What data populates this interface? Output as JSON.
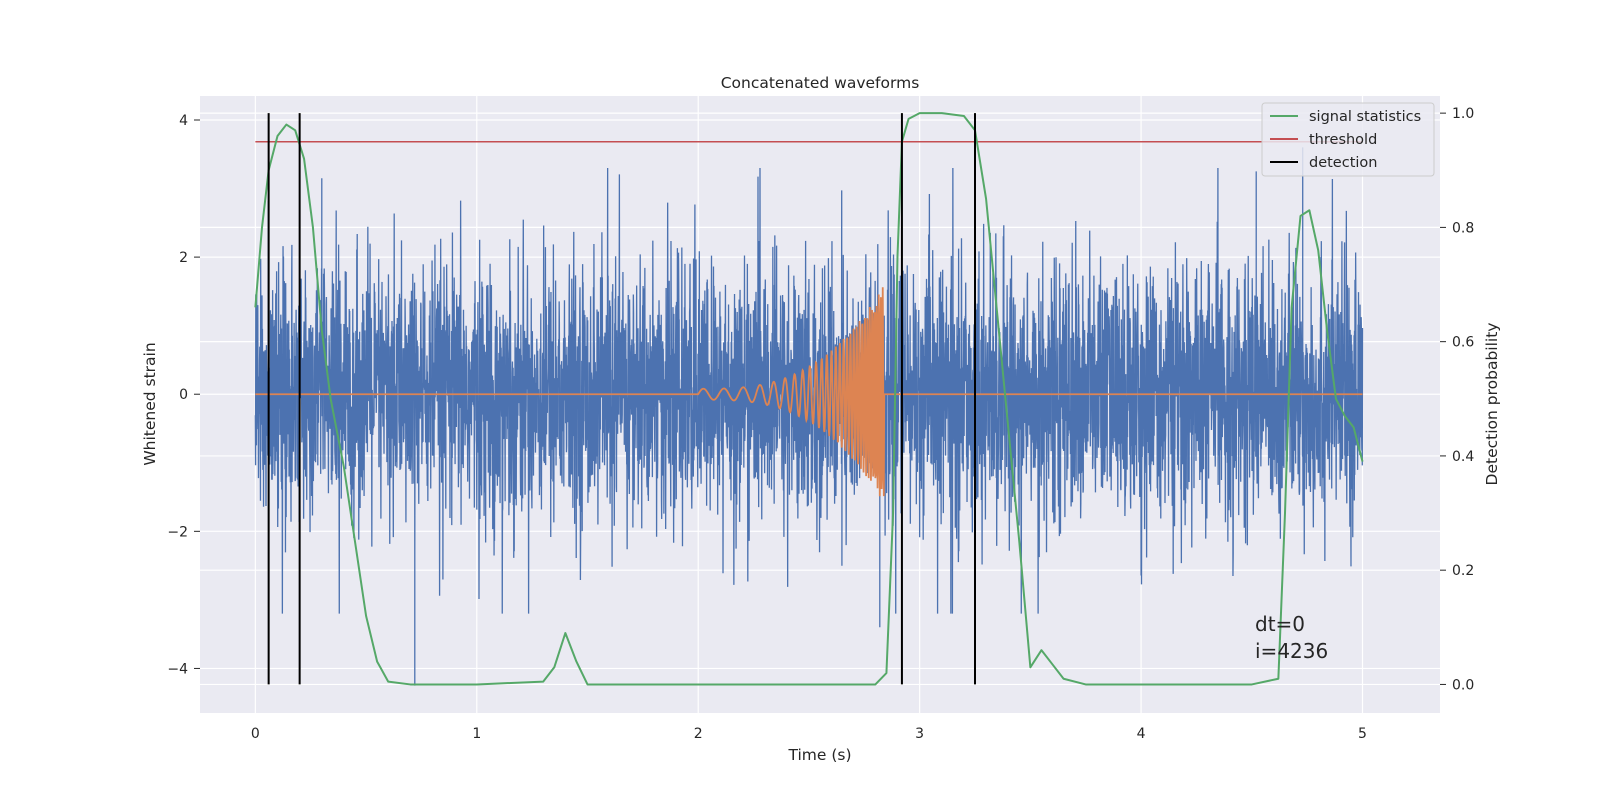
{
  "chart_data": {
    "type": "line",
    "title": "Concatenated waveforms",
    "xlabel": "Time (s)",
    "ylabel": "Whitened strain",
    "y2label": "Detection probability",
    "xlim": [
      -0.25,
      5.35
    ],
    "ylim": [
      -4.65,
      4.35
    ],
    "y2lim": [
      -0.05,
      1.03
    ],
    "x_ticks": [
      0,
      1,
      2,
      3,
      4,
      5
    ],
    "x_tick_labels": [
      "0",
      "1",
      "2",
      "3",
      "4",
      "5"
    ],
    "y_ticks": [
      4,
      2,
      0,
      -2,
      -4
    ],
    "y_tick_labels": [
      "4",
      "2",
      "0",
      "−2",
      "−4"
    ],
    "y2_ticks": [
      1.0,
      0.8,
      0.6,
      0.4,
      0.2,
      0.0
    ],
    "y2_tick_labels": [
      "1.0",
      "0.8",
      "0.6",
      "0.4",
      "0.2",
      "0.0"
    ],
    "grid": true,
    "legend_position": "top-right",
    "legend": [
      {
        "label": "signal statistics",
        "color": "#55a868"
      },
      {
        "label": "threshold",
        "color": "#c44e52"
      },
      {
        "label": "detection",
        "color": "#000000"
      }
    ],
    "series": [
      {
        "name": "whitened strain noise",
        "color": "#4c72b0",
        "axis": "left",
        "x_range": [
          0,
          5
        ],
        "envelope_typical": [
          -1.0,
          1.0
        ],
        "notable_extremes": [
          {
            "x": 0.72,
            "y": -4.25
          },
          {
            "x": 2.82,
            "y": -3.4
          },
          {
            "x": 4.73,
            "y": 3.6
          },
          {
            "x": 0.3,
            "y": 3.15
          },
          {
            "x": 4.52,
            "y": 3.25
          }
        ]
      },
      {
        "name": "injected waveform",
        "color": "#dd8452",
        "axis": "left",
        "x_range": [
          0,
          5
        ],
        "chirp_start": 2.0,
        "chirp_end": 2.84,
        "peak_amplitude": 1.6
      },
      {
        "name": "signal statistics",
        "color": "#55a868",
        "axis": "right",
        "x": [
          0.0,
          0.03,
          0.06,
          0.1,
          0.14,
          0.18,
          0.22,
          0.26,
          0.3,
          0.34,
          0.4,
          0.45,
          0.5,
          0.55,
          0.6,
          0.7,
          1.0,
          1.3,
          1.35,
          1.4,
          1.45,
          1.5,
          2.0,
          2.8,
          2.85,
          2.88,
          2.9,
          2.92,
          2.95,
          3.0,
          3.1,
          3.2,
          3.25,
          3.3,
          3.35,
          3.4,
          3.45,
          3.5,
          3.55,
          3.6,
          3.65,
          3.75,
          4.0,
          4.5,
          4.62,
          4.65,
          4.68,
          4.72,
          4.76,
          4.8,
          4.84,
          4.88,
          4.92,
          4.96,
          5.0
        ],
        "y": [
          0.66,
          0.8,
          0.9,
          0.96,
          0.98,
          0.97,
          0.92,
          0.8,
          0.62,
          0.5,
          0.38,
          0.25,
          0.12,
          0.04,
          0.005,
          0.0,
          0.0,
          0.005,
          0.03,
          0.09,
          0.04,
          0.0,
          0.0,
          0.0,
          0.02,
          0.3,
          0.75,
          0.95,
          0.99,
          1.0,
          1.0,
          0.995,
          0.97,
          0.85,
          0.65,
          0.45,
          0.25,
          0.03,
          0.06,
          0.035,
          0.01,
          0.0,
          0.0,
          0.0,
          0.01,
          0.3,
          0.66,
          0.82,
          0.83,
          0.76,
          0.62,
          0.5,
          0.47,
          0.45,
          0.39
        ]
      },
      {
        "name": "threshold",
        "color": "#c44e52",
        "axis": "right",
        "x": [
          0,
          5
        ],
        "y": [
          0.95,
          0.95
        ]
      }
    ],
    "detections": [
      0.06,
      0.2,
      2.92,
      3.25
    ],
    "annotations": [
      {
        "text": "dt=0"
      },
      {
        "text": "i=4236"
      }
    ]
  }
}
